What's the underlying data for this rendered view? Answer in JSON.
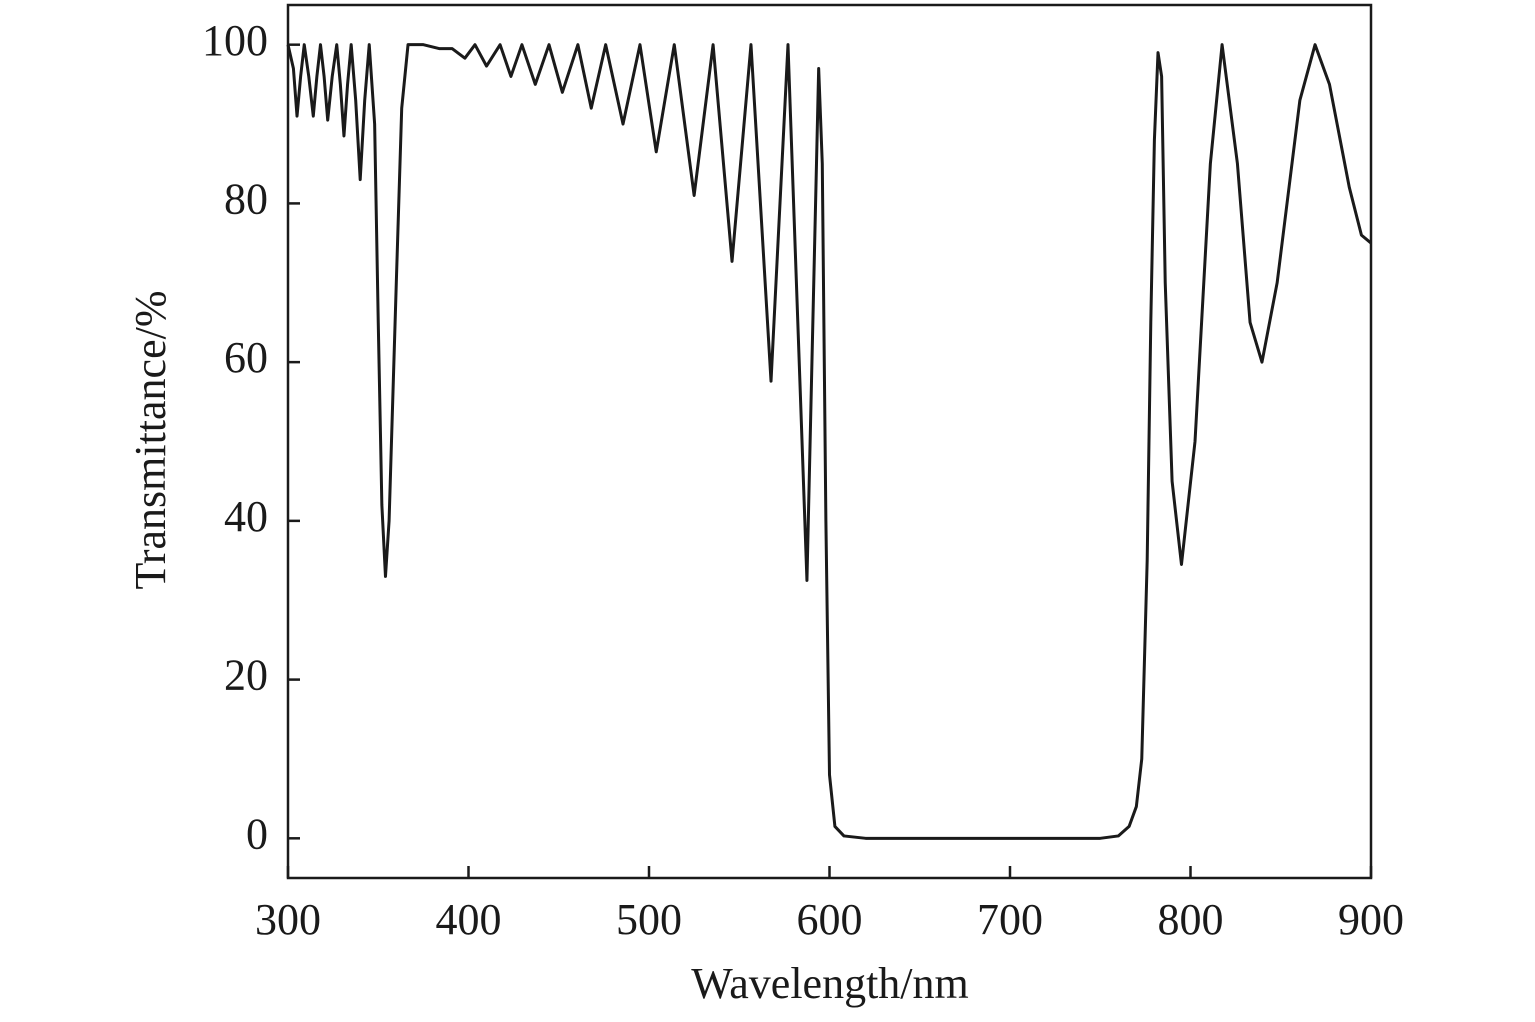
{
  "chart_data": {
    "type": "line",
    "xlabel": "Wavelength/nm",
    "ylabel": "Transmittance/%",
    "xlim": [
      300,
      900
    ],
    "ylim": [
      -5,
      105
    ],
    "xticks": [
      300,
      400,
      500,
      600,
      700,
      800,
      900
    ],
    "yticks": [
      0,
      20,
      40,
      60,
      80,
      100
    ],
    "grid": false,
    "series": [
      {
        "color": "#1a1a1a",
        "x": [
          300,
          303,
          305,
          307,
          309,
          311.5,
          314,
          316,
          318,
          320,
          322,
          324.5,
          327,
          329,
          331,
          333,
          335,
          337.5,
          340,
          342.5,
          345,
          348,
          350,
          352,
          354,
          356,
          360,
          363,
          366.5,
          375,
          384,
          391,
          398,
          403.6,
          410,
          417.5,
          423.5,
          429.6,
          437,
          444.6,
          452,
          460.6,
          468,
          476,
          485.6,
          495,
          504,
          514,
          525,
          535.5,
          546,
          556.5,
          567.6,
          577,
          587.5,
          594,
          596,
          598,
          600,
          603,
          608,
          620,
          700,
          750,
          760,
          766,
          770,
          773,
          776,
          778,
          780,
          782,
          784,
          786,
          789.8,
          795,
          802.5,
          811,
          817.5,
          826,
          833,
          839.6,
          848,
          860.6,
          869,
          877,
          888,
          894.7,
          900
        ],
        "values": [
          100,
          97,
          91,
          96,
          100,
          96,
          91,
          96,
          100,
          96,
          90.5,
          96,
          100,
          95,
          88.5,
          95,
          100,
          93,
          83,
          93,
          100,
          90,
          65,
          42,
          33,
          40,
          70,
          92,
          100,
          100,
          99.5,
          99.5,
          98.3,
          100,
          97.3,
          100,
          96,
          100,
          95,
          100,
          94,
          100,
          92,
          100,
          90,
          100,
          86.5,
          100,
          81,
          100,
          72.7,
          100,
          57.6,
          100,
          32.5,
          97,
          85,
          40,
          8,
          1.5,
          0.3,
          0,
          0,
          0,
          0.3,
          1.5,
          4,
          10,
          35,
          65,
          88,
          99,
          96,
          70,
          45,
          34.5,
          50,
          85,
          100,
          85,
          65,
          60,
          70,
          93,
          100,
          95,
          82,
          76,
          75
        ]
      }
    ]
  }
}
